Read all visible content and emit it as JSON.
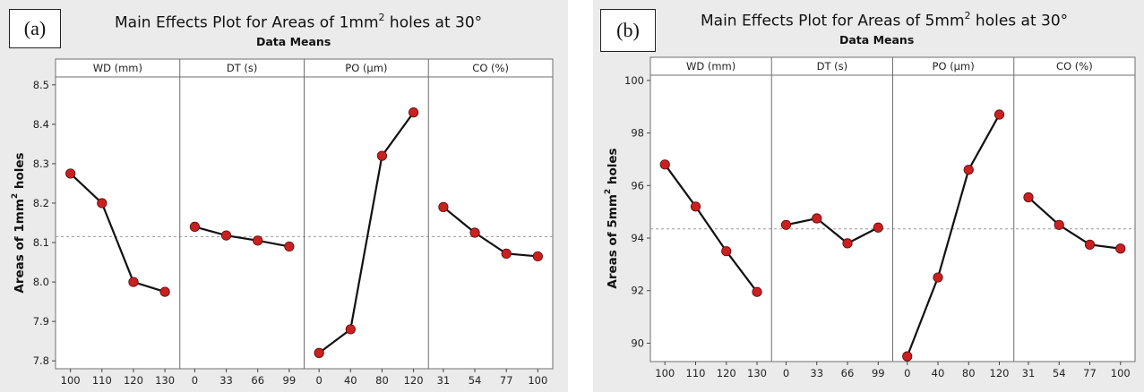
{
  "chart_data": [
    {
      "type": "line",
      "panel_label": "(a)",
      "title": "Main Effects Plot for Areas of 1mm",
      "title_sup": "2",
      "title_end": "holes at 30°",
      "subtitle": "Data Means",
      "ylabel": "Areas of 1mm",
      "ylabel_sup": "2",
      "ylabel_end": " holes",
      "ylim": [
        7.78,
        8.52
      ],
      "yticks": [
        "7.8",
        "7.9",
        "8.0",
        "8.1",
        "8.2",
        "8.3",
        "8.4",
        "8.5"
      ],
      "mean_line": 8.115,
      "marker_color": "#cc1f1f",
      "facets": [
        {
          "name": "WD (mm)",
          "x": [
            "100",
            "110",
            "120",
            "130"
          ],
          "values": [
            8.275,
            8.2,
            8.0,
            7.975
          ]
        },
        {
          "name": "DT (s)",
          "x": [
            "0",
            "33",
            "66",
            "99"
          ],
          "values": [
            8.14,
            8.118,
            8.105,
            8.09
          ]
        },
        {
          "name": "PO (µm)",
          "x": [
            "0",
            "40",
            "80",
            "120"
          ],
          "values": [
            7.82,
            7.88,
            8.32,
            8.43
          ]
        },
        {
          "name": "CO (%)",
          "x": [
            "31",
            "54",
            "77",
            "100"
          ],
          "values": [
            8.19,
            8.125,
            8.072,
            8.065
          ]
        }
      ]
    },
    {
      "type": "line",
      "panel_label": "(b)",
      "title": "Main Effects Plot for Areas of 5mm",
      "title_sup": "2",
      "title_end": "holes at 30°",
      "subtitle": "Data Means",
      "ylabel": "Areas of 5mm",
      "ylabel_sup": "2",
      "ylabel_end": " holes",
      "ylim": [
        89.3,
        100.2
      ],
      "yticks": [
        "90",
        "92",
        "94",
        "96",
        "98",
        "100"
      ],
      "mean_line": 94.35,
      "marker_color": "#cc1f1f",
      "facets": [
        {
          "name": "WD (mm)",
          "x": [
            "100",
            "110",
            "120",
            "130"
          ],
          "values": [
            96.8,
            95.2,
            93.5,
            91.95
          ]
        },
        {
          "name": "DT (s)",
          "x": [
            "0",
            "33",
            "66",
            "99"
          ],
          "values": [
            94.5,
            94.75,
            93.8,
            94.4
          ]
        },
        {
          "name": "PO (µm)",
          "x": [
            "0",
            "40",
            "80",
            "120"
          ],
          "values": [
            89.5,
            92.5,
            96.6,
            98.7
          ]
        },
        {
          "name": "CO (%)",
          "x": [
            "31",
            "54",
            "77",
            "100"
          ],
          "values": [
            95.55,
            94.5,
            93.75,
            93.6
          ]
        }
      ]
    }
  ]
}
